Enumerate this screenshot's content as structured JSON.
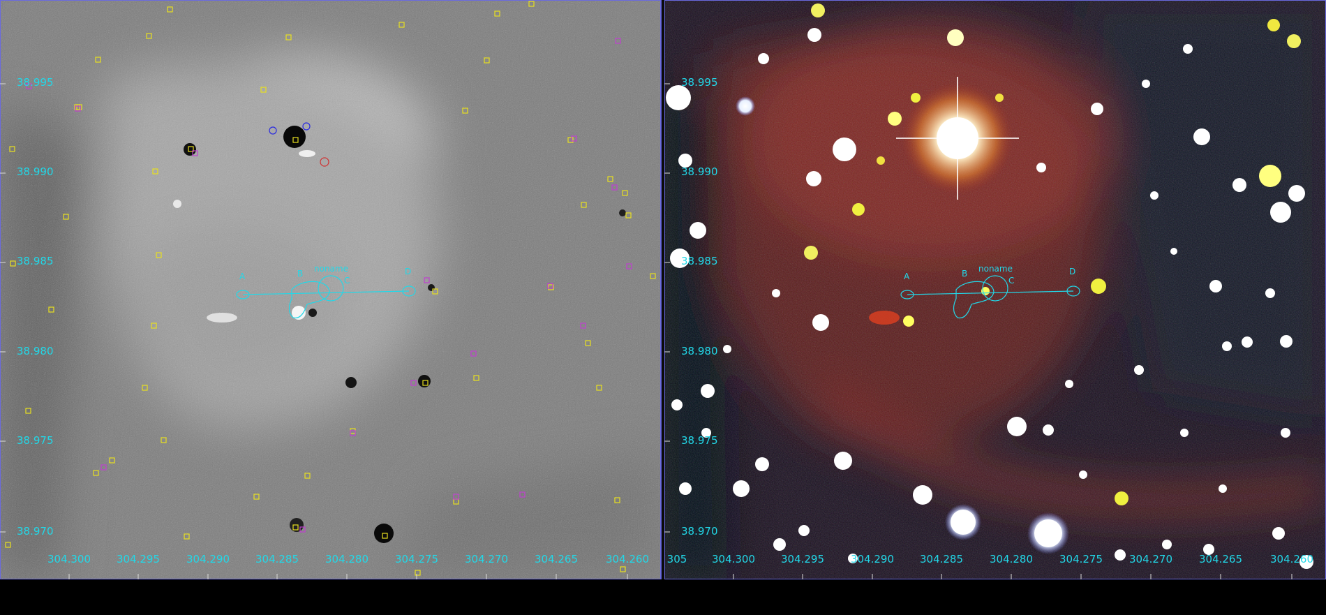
{
  "colors": {
    "overlay": "#22d8e8",
    "catalog_box": "#e8e020",
    "catalog_magenta": "#c040d0",
    "frame_border": "#6a6ae0"
  },
  "left_panel": {
    "dec_labels": [
      "38.995",
      "38.990",
      "38.985",
      "38.980",
      "38.975",
      "38.970"
    ],
    "ra_labels": [
      "304.300",
      "304.295",
      "304.290",
      "304.285",
      "304.280",
      "304.275",
      "304.270",
      "304.265",
      "304.260"
    ],
    "source_labels": {
      "a": "A",
      "b": "B",
      "c": "C",
      "d": "D",
      "noname": "noname"
    }
  },
  "right_panel": {
    "dec_labels": [
      "38.995",
      "38.990",
      "38.985",
      "38.980",
      "38.975",
      "38.970"
    ],
    "ra_labels": [
      "305",
      "304.300",
      "304.295",
      "304.290",
      "304.285",
      "304.280",
      "304.275",
      "304.270",
      "304.265",
      "304.260"
    ],
    "source_labels": {
      "a": "A",
      "b": "B",
      "c": "C",
      "d": "D",
      "noname": "noname"
    }
  }
}
